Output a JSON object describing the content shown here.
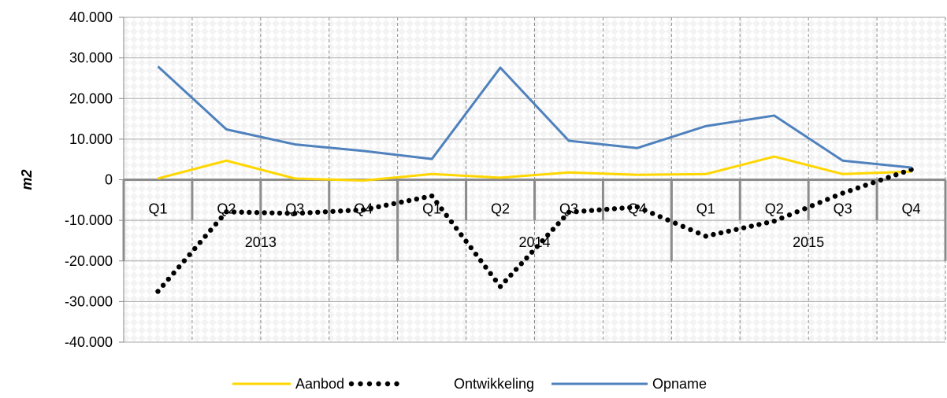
{
  "chart_data": {
    "type": "line",
    "ylabel": "m2",
    "ylim": [
      -40000,
      40000
    ],
    "yticks": [
      40000,
      30000,
      20000,
      10000,
      0,
      -10000,
      -20000,
      -30000,
      -40000
    ],
    "ytick_labels": [
      "40.000",
      "30.000",
      "20.000",
      "10.000",
      "0",
      "-10.000",
      "-20.000",
      "-30.000",
      "-40.000"
    ],
    "categories": [
      "Q1",
      "Q2",
      "Q3",
      "Q4",
      "Q1",
      "Q2",
      "Q3",
      "Q4",
      "Q1",
      "Q2",
      "Q3",
      "Q4"
    ],
    "groups": [
      {
        "label": "2013",
        "span": 4
      },
      {
        "label": "2014",
        "span": 4
      },
      {
        "label": "2015",
        "span": 4
      }
    ],
    "grid": true,
    "legend_position": "bottom",
    "series": [
      {
        "name": "Aanbod",
        "color": "#FFD700",
        "style": "solid",
        "values": [
          300,
          4700,
          300,
          -200,
          1400,
          500,
          1800,
          1200,
          1400,
          5700,
          1400,
          2000
        ]
      },
      {
        "name": "Ontwikkeling",
        "color": "#000000",
        "style": "dotted",
        "values": [
          -27500,
          -7900,
          -8300,
          -7400,
          -4000,
          -26300,
          -8000,
          -6700,
          -13900,
          -10200,
          -3300,
          2500
        ]
      },
      {
        "name": "Opname",
        "color": "#4F81BD",
        "style": "solid",
        "values": [
          27900,
          12400,
          8700,
          7100,
          5100,
          27600,
          9600,
          7800,
          13200,
          15800,
          4700,
          3000
        ]
      }
    ]
  }
}
